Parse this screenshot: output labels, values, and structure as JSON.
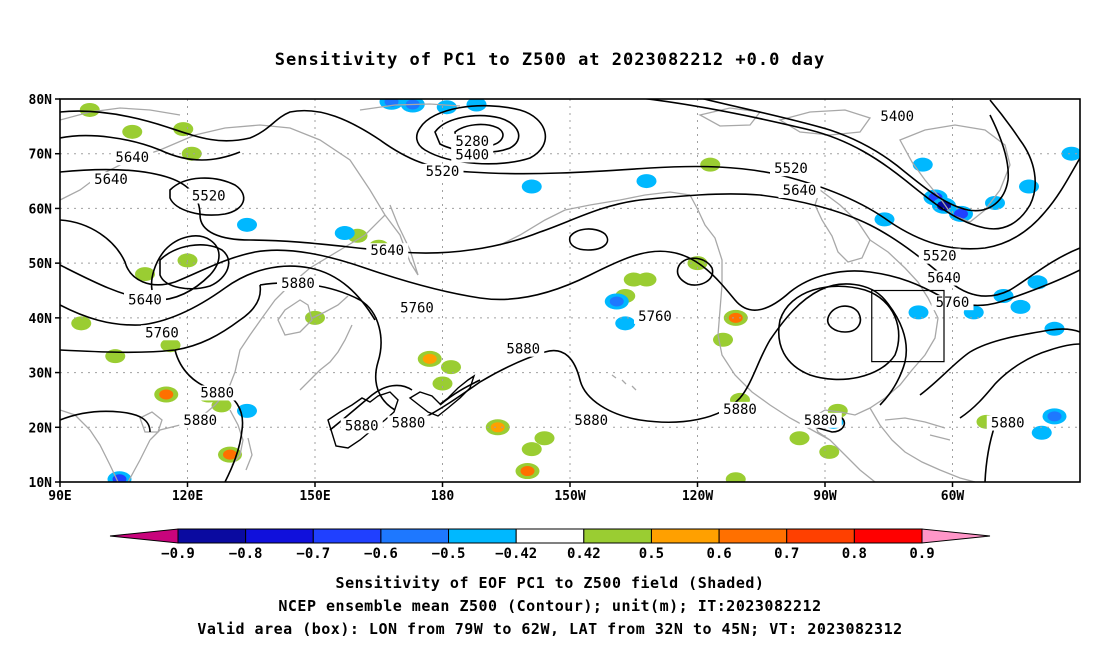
{
  "title": "Sensitivity of PC1 to Z500 at 2023082212 +0.0 day",
  "map": {
    "lat_ticks": [
      "80N",
      "70N",
      "60N",
      "50N",
      "40N",
      "30N",
      "20N",
      "10N"
    ],
    "lon_ticks": [
      "90E",
      "120E",
      "150E",
      "180",
      "150W",
      "120W",
      "90W",
      "60W"
    ],
    "valid_box": {
      "lon_west": -79,
      "lon_east": -62,
      "lat_south": 32,
      "lat_north": 45
    },
    "contour_labels": [
      {
        "text": "5640",
        "lon": 107,
        "lat": 69
      },
      {
        "text": "5640",
        "lon": 102,
        "lat": 65
      },
      {
        "text": "5520",
        "lon": 125,
        "lat": 62
      },
      {
        "text": "5280",
        "lon": 187,
        "lat": 72
      },
      {
        "text": "5400",
        "lon": 187,
        "lat": 69.5
      },
      {
        "text": "5520",
        "lon": 180,
        "lat": 66.5
      },
      {
        "text": "5400",
        "lon": 287,
        "lat": 76.5
      },
      {
        "text": "5520",
        "lon": 262,
        "lat": 67
      },
      {
        "text": "5640",
        "lon": 264,
        "lat": 63
      },
      {
        "text": "5640",
        "lon": 167,
        "lat": 52
      },
      {
        "text": "5640",
        "lon": 110,
        "lat": 43
      },
      {
        "text": "5880",
        "lon": 146,
        "lat": 46
      },
      {
        "text": "5760",
        "lon": 174,
        "lat": 41.5
      },
      {
        "text": "5760",
        "lon": 114,
        "lat": 37
      },
      {
        "text": "5760",
        "lon": 230,
        "lat": 40
      },
      {
        "text": "5880",
        "lon": 199,
        "lat": 34
      },
      {
        "text": "5880",
        "lon": 127,
        "lat": 26
      },
      {
        "text": "5880",
        "lon": 123,
        "lat": 21
      },
      {
        "text": "5880",
        "lon": 161,
        "lat": 20
      },
      {
        "text": "5880",
        "lon": 172,
        "lat": 20.5
      },
      {
        "text": "5880",
        "lon": 215,
        "lat": 21
      },
      {
        "text": "5880",
        "lon": 250,
        "lat": 23
      },
      {
        "text": "5880",
        "lon": 269,
        "lat": 21
      },
      {
        "text": "5640",
        "lon": 298,
        "lat": 47
      },
      {
        "text": "5520",
        "lon": 297,
        "lat": 51
      },
      {
        "text": "5760",
        "lon": 300,
        "lat": 42.5
      },
      {
        "text": "5880",
        "lon": 313,
        "lat": 20.5
      }
    ],
    "shading_patches": [
      {
        "lon": 107,
        "lat": 74,
        "value": 0.45
      },
      {
        "lon": 119,
        "lat": 74.5,
        "value": 0.45
      },
      {
        "lon": 121,
        "lat": 70,
        "value": 0.45
      },
      {
        "lon": 97,
        "lat": 78,
        "value": 0.45
      },
      {
        "lon": 120,
        "lat": 50.5,
        "value": 0.45
      },
      {
        "lon": 110,
        "lat": 48,
        "value": 0.45
      },
      {
        "lon": 95,
        "lat": 39,
        "value": 0.45
      },
      {
        "lon": 103,
        "lat": 33,
        "value": 0.45
      },
      {
        "lon": 116,
        "lat": 35,
        "value": 0.45
      },
      {
        "lon": 115,
        "lat": 26,
        "value": 0.6
      },
      {
        "lon": 125,
        "lat": 26,
        "value": 0.55
      },
      {
        "lon": 128,
        "lat": 24,
        "value": 0.45
      },
      {
        "lon": 130,
        "lat": 15,
        "value": 0.65
      },
      {
        "lon": 150,
        "lat": 40,
        "value": 0.45
      },
      {
        "lon": 160,
        "lat": 55,
        "value": 0.45
      },
      {
        "lon": 165,
        "lat": 53,
        "value": 0.45
      },
      {
        "lon": 177,
        "lat": 32.5,
        "value": 0.55
      },
      {
        "lon": 180,
        "lat": 28,
        "value": 0.5
      },
      {
        "lon": 182,
        "lat": 31,
        "value": 0.45
      },
      {
        "lon": 193,
        "lat": 20,
        "value": 0.55
      },
      {
        "lon": 200,
        "lat": 12,
        "value": 0.65
      },
      {
        "lon": 201,
        "lat": 16,
        "value": 0.45
      },
      {
        "lon": 204,
        "lat": 18,
        "value": 0.45
      },
      {
        "lon": 223,
        "lat": 44,
        "value": 0.45
      },
      {
        "lon": 225,
        "lat": 47,
        "value": 0.45
      },
      {
        "lon": 228,
        "lat": 47,
        "value": 0.45
      },
      {
        "lon": 240,
        "lat": 50,
        "value": 0.45
      },
      {
        "lon": 249,
        "lat": 40,
        "value": 0.65
      },
      {
        "lon": 246,
        "lat": 36,
        "value": 0.45
      },
      {
        "lon": 250,
        "lat": 25,
        "value": 0.45
      },
      {
        "lon": 264,
        "lat": 18,
        "value": 0.45
      },
      {
        "lon": 271,
        "lat": 15.5,
        "value": 0.5
      },
      {
        "lon": 273,
        "lat": 23,
        "value": 0.45
      },
      {
        "lon": 243,
        "lat": 68,
        "value": 0.45
      },
      {
        "lon": 308,
        "lat": 21,
        "value": 0.45
      },
      {
        "lon": 249,
        "lat": 10.5,
        "value": 0.45
      },
      {
        "lon": 173,
        "lat": 79,
        "value": -0.55
      },
      {
        "lon": 168,
        "lat": 79.5,
        "value": -0.55
      },
      {
        "lon": 181,
        "lat": 78.5,
        "value": -0.5
      },
      {
        "lon": 188,
        "lat": 79,
        "value": -0.45
      },
      {
        "lon": 157,
        "lat": 55.5,
        "value": -0.45
      },
      {
        "lon": 134,
        "lat": 57,
        "value": -0.45
      },
      {
        "lon": 201,
        "lat": 64,
        "value": -0.45
      },
      {
        "lon": 221,
        "lat": 43,
        "value": -0.55
      },
      {
        "lon": 223,
        "lat": 39,
        "value": -0.5
      },
      {
        "lon": 228,
        "lat": 65,
        "value": -0.45
      },
      {
        "lon": 284,
        "lat": 58,
        "value": -0.45
      },
      {
        "lon": 293,
        "lat": 68,
        "value": -0.5
      },
      {
        "lon": 296,
        "lat": 62,
        "value": -0.6
      },
      {
        "lon": 298,
        "lat": 60.5,
        "value": -0.8
      },
      {
        "lon": 302,
        "lat": 59,
        "value": -0.65
      },
      {
        "lon": 310,
        "lat": 61,
        "value": -0.5
      },
      {
        "lon": 318,
        "lat": 64,
        "value": -0.45
      },
      {
        "lon": 328,
        "lat": 70,
        "value": -0.5
      },
      {
        "lon": 305,
        "lat": 41,
        "value": -0.5
      },
      {
        "lon": 312,
        "lat": 44,
        "value": -0.5
      },
      {
        "lon": 316,
        "lat": 42,
        "value": -0.45
      },
      {
        "lon": 320,
        "lat": 46.5,
        "value": -0.5
      },
      {
        "lon": 324,
        "lat": 38,
        "value": -0.45
      },
      {
        "lon": 292,
        "lat": 41,
        "value": -0.45
      },
      {
        "lon": 324,
        "lat": 22,
        "value": -0.55
      },
      {
        "lon": 321,
        "lat": 19,
        "value": -0.5
      },
      {
        "lon": 104,
        "lat": 10.5,
        "value": -0.6
      },
      {
        "lon": 272,
        "lat": 21,
        "value": -0.45
      },
      {
        "lon": 134,
        "lat": 23,
        "value": -0.45
      }
    ]
  },
  "colorbar": {
    "colors": [
      "#c8047c",
      "#0a0aa0",
      "#1010dc",
      "#2040ff",
      "#1e78ff",
      "#00b8ff",
      "#ffffff",
      "#9acd32",
      "#ffa000",
      "#ff7000",
      "#ff4000",
      "#ff0000",
      "#ff96c8"
    ],
    "labels": [
      "-0.9",
      "-0.8",
      "-0.7",
      "-0.6",
      "-0.5",
      "-0.42",
      "0.42",
      "0.5",
      "0.6",
      "0.7",
      "0.8",
      "0.9"
    ]
  },
  "colors": {
    "land": "#a8a8a8",
    "contour": "#000000",
    "grid": "#a0a0a0",
    "box": "#000000"
  },
  "captions": {
    "line1": "Sensitivity of EOF PC1 to Z500 field (Shaded)",
    "line2": "NCEP ensemble mean Z500 (Contour); unit(m); IT:2023082212",
    "line3": "Valid area (box): LON from 79W to 62W, LAT from 32N to 45N; VT: 2023082312"
  }
}
